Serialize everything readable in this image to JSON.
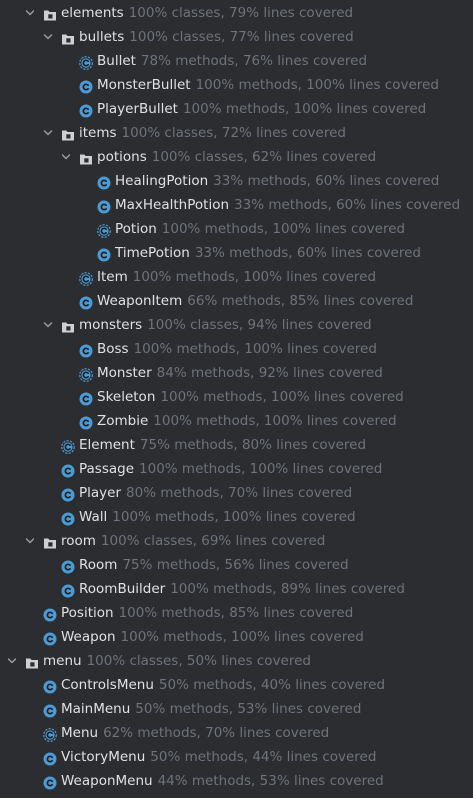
{
  "colors": {
    "background": "#2b2d30",
    "name_text": "#dfe1e5",
    "coverage_text": "#6f737a",
    "class_icon": "#4a9bd6",
    "folder_icon": "#ced0d6"
  },
  "tree": [
    {
      "depth": 1,
      "kind": "package",
      "expanded": true,
      "name": "elements",
      "stat": "100% classes, 79% lines covered"
    },
    {
      "depth": 2,
      "kind": "package",
      "expanded": true,
      "name": "bullets",
      "stat": "100% classes, 77% lines covered"
    },
    {
      "depth": 3,
      "kind": "abstract-class",
      "name": "Bullet",
      "stat": "78% methods, 76% lines covered"
    },
    {
      "depth": 3,
      "kind": "class",
      "name": "MonsterBullet",
      "stat": "100% methods, 100% lines covered"
    },
    {
      "depth": 3,
      "kind": "class",
      "name": "PlayerBullet",
      "stat": "100% methods, 100% lines covered"
    },
    {
      "depth": 2,
      "kind": "package",
      "expanded": true,
      "name": "items",
      "stat": "100% classes, 72% lines covered"
    },
    {
      "depth": 3,
      "kind": "package",
      "expanded": true,
      "name": "potions",
      "stat": "100% classes, 62% lines covered"
    },
    {
      "depth": 4,
      "kind": "class",
      "name": "HealingPotion",
      "stat": "33% methods, 60% lines covered"
    },
    {
      "depth": 4,
      "kind": "class",
      "name": "MaxHealthPotion",
      "stat": "33% methods, 60% lines covered"
    },
    {
      "depth": 4,
      "kind": "abstract-class",
      "name": "Potion",
      "stat": "100% methods, 100% lines covered"
    },
    {
      "depth": 4,
      "kind": "class",
      "name": "TimePotion",
      "stat": "33% methods, 60% lines covered"
    },
    {
      "depth": 3,
      "kind": "abstract-class",
      "name": "Item",
      "stat": "100% methods, 100% lines covered"
    },
    {
      "depth": 3,
      "kind": "class",
      "name": "WeaponItem",
      "stat": "66% methods, 85% lines covered"
    },
    {
      "depth": 2,
      "kind": "package",
      "expanded": true,
      "name": "monsters",
      "stat": "100% classes, 94% lines covered"
    },
    {
      "depth": 3,
      "kind": "class",
      "name": "Boss",
      "stat": "100% methods, 100% lines covered"
    },
    {
      "depth": 3,
      "kind": "abstract-class",
      "name": "Monster",
      "stat": "84% methods, 92% lines covered"
    },
    {
      "depth": 3,
      "kind": "class",
      "name": "Skeleton",
      "stat": "100% methods, 100% lines covered"
    },
    {
      "depth": 3,
      "kind": "class",
      "name": "Zombie",
      "stat": "100% methods, 100% lines covered"
    },
    {
      "depth": 2,
      "kind": "abstract-class",
      "name": "Element",
      "stat": "75% methods, 80% lines covered"
    },
    {
      "depth": 2,
      "kind": "class",
      "name": "Passage",
      "stat": "100% methods, 100% lines covered"
    },
    {
      "depth": 2,
      "kind": "class",
      "name": "Player",
      "stat": "80% methods, 70% lines covered"
    },
    {
      "depth": 2,
      "kind": "class",
      "name": "Wall",
      "stat": "100% methods, 100% lines covered"
    },
    {
      "depth": 1,
      "kind": "package",
      "expanded": true,
      "name": "room",
      "stat": "100% classes, 69% lines covered"
    },
    {
      "depth": 2,
      "kind": "class",
      "name": "Room",
      "stat": "75% methods, 56% lines covered"
    },
    {
      "depth": 2,
      "kind": "class",
      "name": "RoomBuilder",
      "stat": "100% methods, 89% lines covered"
    },
    {
      "depth": 1,
      "kind": "class",
      "name": "Position",
      "stat": "100% methods, 85% lines covered"
    },
    {
      "depth": 1,
      "kind": "class",
      "name": "Weapon",
      "stat": "100% methods, 100% lines covered"
    },
    {
      "depth": 0,
      "kind": "package",
      "expanded": true,
      "name": "menu",
      "stat": "100% classes, 50% lines covered"
    },
    {
      "depth": 1,
      "kind": "class",
      "name": "ControlsMenu",
      "stat": "50% methods, 40% lines covered"
    },
    {
      "depth": 1,
      "kind": "class",
      "name": "MainMenu",
      "stat": "50% methods, 53% lines covered"
    },
    {
      "depth": 1,
      "kind": "abstract-class",
      "name": "Menu",
      "stat": "62% methods, 70% lines covered"
    },
    {
      "depth": 1,
      "kind": "class",
      "name": "VictoryMenu",
      "stat": "50% methods, 44% lines covered"
    },
    {
      "depth": 1,
      "kind": "class",
      "name": "WeaponMenu",
      "stat": "44% methods, 53% lines covered"
    }
  ]
}
